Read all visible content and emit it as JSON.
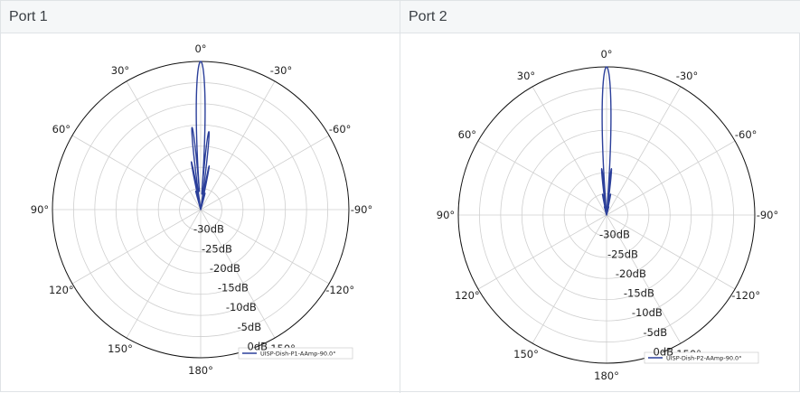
{
  "panels": [
    {
      "title": "Port 1",
      "chart_data": {
        "type": "polar-line",
        "theta_direction": "counter-clockwise, 0° at top",
        "r_axis_labels": [
          "-30dB",
          "-25dB",
          "-20dB",
          "-15dB",
          "-10dB",
          "-5dB",
          "0dB"
        ],
        "r_range_db": [
          -35,
          0
        ],
        "angle_labels": [
          "0°",
          "30°",
          "60°",
          "90°",
          "120°",
          "150°",
          "180°",
          "-150°",
          "-120°",
          "-90°",
          "-60°",
          "-30°"
        ],
        "grid": true,
        "legend": "bottom-right",
        "series": [
          {
            "name": "UISP-Dish-P1-AAmp-90.0°",
            "color": "#2b3f9a",
            "lobes_deg_db": [
              [
                0,
                0
              ],
              [
                -6,
                -16.5
              ],
              [
                6,
                -15.5
              ],
              [
                -11,
                -24.5
              ],
              [
                11,
                -23.5
              ],
              [
                -15,
                -31
              ],
              [
                15,
                -30.5
              ]
            ]
          }
        ]
      }
    },
    {
      "title": "Port 2",
      "chart_data": {
        "type": "polar-line",
        "theta_direction": "counter-clockwise, 0° at top",
        "r_axis_labels": [
          "-30dB",
          "-25dB",
          "-20dB",
          "-15dB",
          "-10dB",
          "-5dB",
          "0dB"
        ],
        "r_range_db": [
          -35,
          0
        ],
        "angle_labels": [
          "0°",
          "30°",
          "60°",
          "90°",
          "120°",
          "150°",
          "180°",
          "-150°",
          "-120°",
          "-90°",
          "-60°",
          "-30°"
        ],
        "grid": true,
        "legend": "bottom-right",
        "series": [
          {
            "name": "UISP-Dish-P2-AAmp-90.0°",
            "color": "#2b3f9a",
            "lobes_deg_db": [
              [
                0,
                0
              ],
              [
                -6,
                -24
              ],
              [
                6,
                -24
              ],
              [
                -11,
                -30
              ],
              [
                11,
                -30
              ],
              [
                -15,
                -33
              ],
              [
                15,
                -33
              ]
            ]
          }
        ]
      }
    }
  ]
}
